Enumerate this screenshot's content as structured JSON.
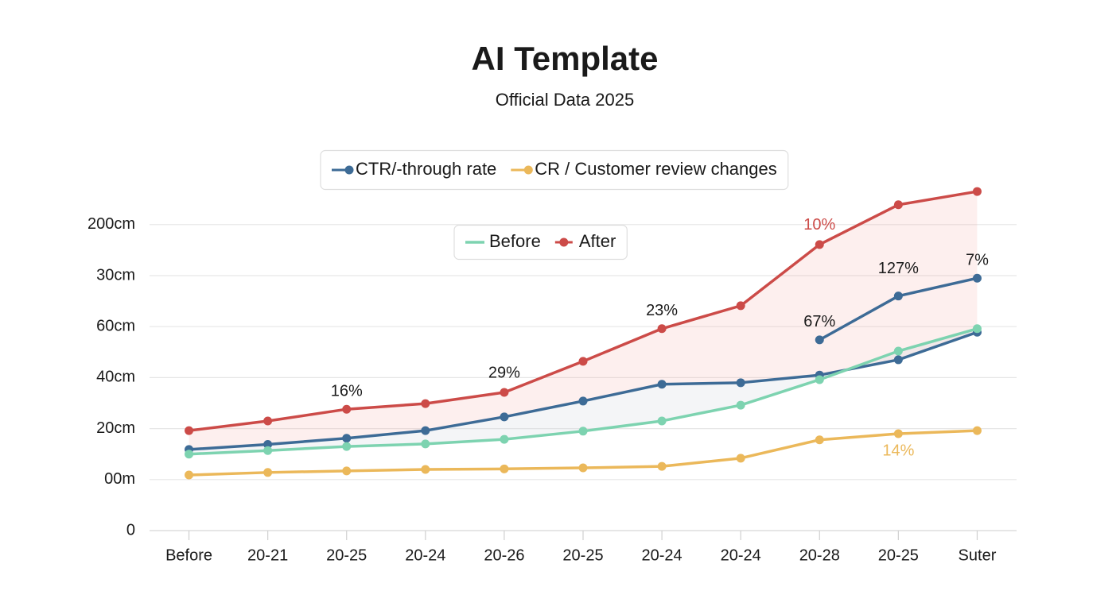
{
  "chart_data": {
    "type": "line",
    "title": "AI Template",
    "subtitle": "Official Data 2025",
    "categories": [
      "Before",
      "20-21",
      "20-25",
      "20-24",
      "20-26",
      "20-25",
      "20-24",
      "20-24",
      "20-28",
      "20-25",
      "Suter"
    ],
    "series": [
      {
        "name": "CTR/-through rate",
        "color": "#3d6b96",
        "legend": 1,
        "values": [
          1.59,
          1.69,
          1.81,
          1.96,
          2.23,
          2.54,
          2.87,
          2.9,
          3.05,
          3.35,
          3.89
        ]
      },
      {
        "name": "CR / Customer review changes",
        "color": "#ebb85a",
        "legend": 1,
        "values": [
          1.09,
          1.14,
          1.17,
          1.2,
          1.21,
          1.23,
          1.26,
          1.42,
          1.78,
          1.9,
          1.96
        ]
      },
      {
        "name": "Before",
        "color": "#7dd3b0",
        "legend": 2,
        "values": [
          1.5,
          1.57,
          1.65,
          1.7,
          1.79,
          1.95,
          2.15,
          2.46,
          2.96,
          3.52,
          3.96
        ]
      },
      {
        "name": "After",
        "color": "#cc4b48",
        "legend": 2,
        "values": [
          1.96,
          2.15,
          2.38,
          2.49,
          2.71,
          3.32,
          3.96,
          4.41,
          5.61,
          6.39,
          6.65
        ]
      },
      {
        "color": "#3d6b96",
        "values": [
          null,
          null,
          null,
          null,
          null,
          null,
          null,
          null,
          3.74,
          4.6,
          4.95
        ]
      }
    ],
    "annotations": [
      "16%",
      "29%",
      "23%",
      "10%",
      "67%",
      "127%",
      "7%",
      "14%"
    ],
    "ylim": [
      0,
      7
    ],
    "yticks": [
      0,
      {
        "value": 1,
        "label": "00m"
      },
      {
        "value": 2,
        "label": "20cm"
      },
      {
        "value": 3,
        "label": "40cm"
      },
      {
        "value": 4,
        "label": "60cm"
      },
      {
        "value": 5,
        "label": "30cm"
      },
      {
        "value": 6,
        "label": "200cm"
      }
    ],
    "grid": true
  }
}
